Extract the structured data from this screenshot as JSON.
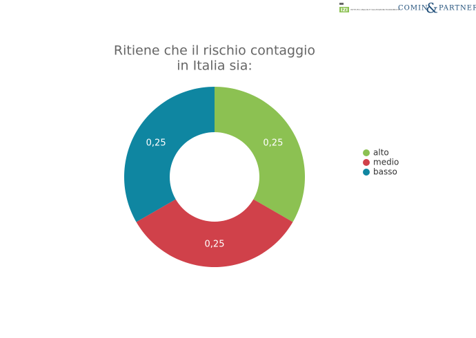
{
  "header": {
    "logo_mark": "IZI",
    "logo_text": "ISTITUTO ANALISI E VALUTAZIONI ECONOMICHE",
    "brand_left": "COMIN",
    "brand_amp": "&",
    "brand_right": "PARTNERS"
  },
  "chart_data": {
    "type": "donut",
    "title": [
      "Ritiene che il rischio contaggio",
      "in Italia sia:"
    ],
    "categories": [
      "alto",
      "medio",
      "basso"
    ],
    "values": [
      0.25,
      0.25,
      0.25
    ],
    "value_labels": [
      "0,25",
      "0,25",
      "0,25"
    ],
    "colors": [
      "#8cc152",
      "#d0414a",
      "#0f86a1"
    ],
    "legend": "right"
  }
}
